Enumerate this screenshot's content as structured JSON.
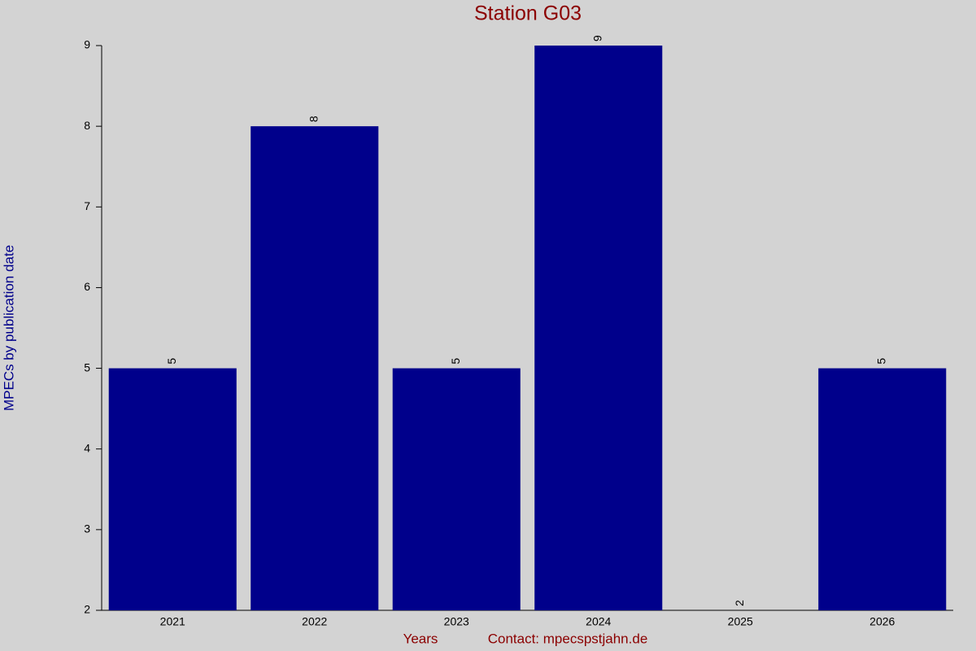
{
  "chart_data": {
    "type": "bar",
    "title": "Station G03",
    "x_label": "Years",
    "y_label": "MPECs by publication date",
    "annotation": "Contact: mpecspstjahn.de",
    "categories": [
      "2021",
      "2022",
      "2023",
      "2024",
      "2025",
      "2026"
    ],
    "values": [
      5,
      8,
      5,
      9,
      2,
      5
    ],
    "color": "#00008b",
    "ylim": [
      2,
      9
    ],
    "yticks": [
      2,
      3,
      4,
      5,
      6,
      7,
      8,
      9
    ],
    "grid": false
  }
}
